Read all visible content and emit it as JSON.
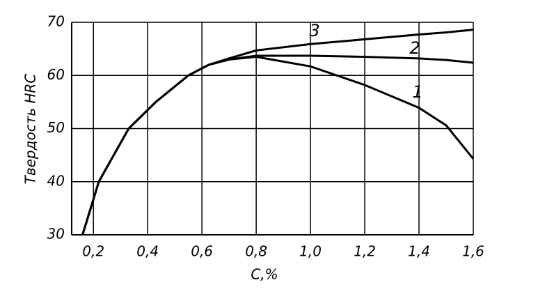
{
  "chart_data": {
    "type": "line",
    "x_label": "C,%",
    "y_label": "Твердость HRC",
    "x": [
      0.16,
      0.22,
      0.33,
      0.43,
      0.55,
      0.625,
      0.7,
      0.8,
      1.0,
      1.2,
      1.4,
      1.5,
      1.6
    ],
    "series": [
      {
        "name": "1",
        "color": "#000000",
        "values": [
          30,
          40,
          50,
          55,
          60,
          62,
          63,
          63.5,
          61.7,
          58.2,
          53.9,
          50.6,
          44.3
        ]
      },
      {
        "name": "2",
        "color": "#000000",
        "values": [
          30,
          40,
          50,
          55,
          60,
          62,
          63,
          63.7,
          63.7,
          63.5,
          63.2,
          62.9,
          62.4
        ]
      },
      {
        "name": "3",
        "color": "#000000",
        "values": [
          30,
          40,
          50,
          55,
          60,
          62,
          63.2,
          64.7,
          65.9,
          66.8,
          67.7,
          68.1,
          68.6
        ]
      }
    ],
    "xlim": [
      0.12,
      1.6
    ],
    "ylim": [
      30,
      70
    ],
    "xticks": [
      {
        "value": 0.2,
        "label": "0,2"
      },
      {
        "value": 0.4,
        "label": "0,4"
      },
      {
        "value": 0.6,
        "label": "0,6"
      },
      {
        "value": 0.8,
        "label": "0,8"
      },
      {
        "value": 1.0,
        "label": "1,0"
      },
      {
        "value": 1.2,
        "label": "1,2"
      },
      {
        "value": 1.4,
        "label": "1,4"
      },
      {
        "value": 1.6,
        "label": "1,6"
      }
    ],
    "yticks": [
      30,
      40,
      50,
      60,
      70
    ],
    "grid": true
  }
}
